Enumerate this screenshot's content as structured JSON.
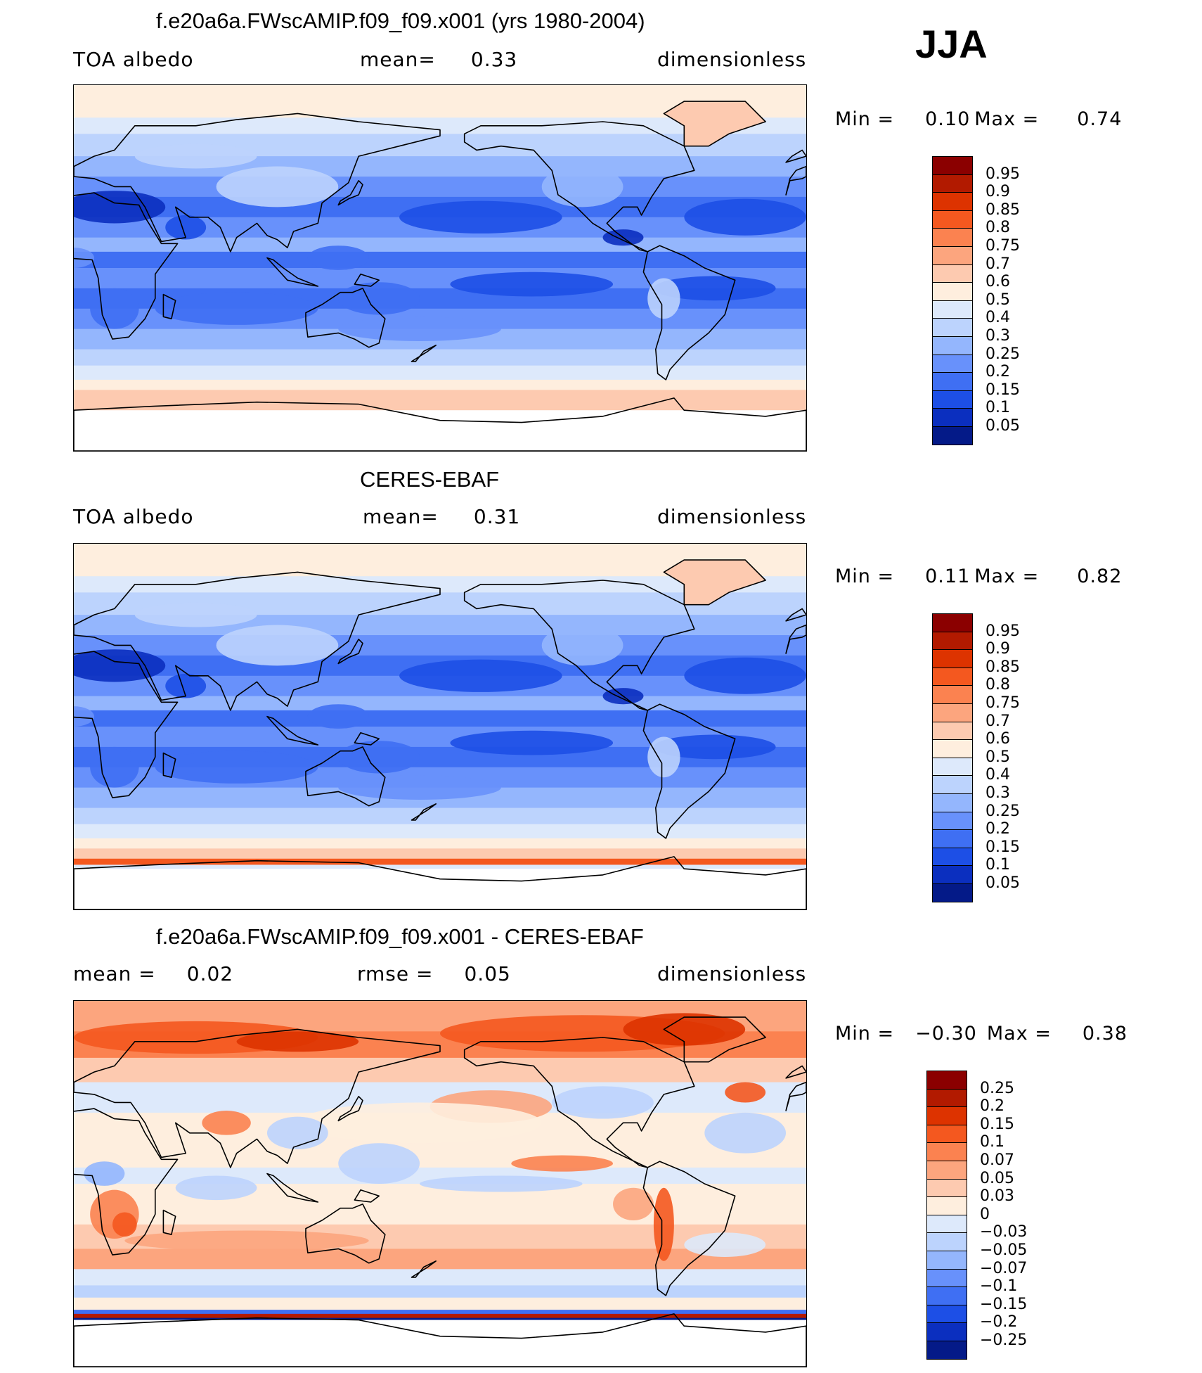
{
  "season": "JJA",
  "panels": [
    {
      "id": "model",
      "title": "f.e20a6a.FWscAMIP.f09_f09.x001 (yrs 1980-2004)",
      "left_label": "TOA albedo",
      "center_label": "mean=",
      "center_value": "0.33",
      "right_label": "dimensionless",
      "min_label": "Min =",
      "min_value": "0.10",
      "max_label": "Max =",
      "max_value": "0.74",
      "colorbar_labels": [
        "0.95",
        "0.9",
        "0.85",
        "0.8",
        "0.75",
        "0.7",
        "0.6",
        "0.5",
        "0.4",
        "0.3",
        "0.25",
        "0.2",
        "0.15",
        "0.1",
        "0.05"
      ]
    },
    {
      "id": "obs",
      "title": "CERES-EBAF",
      "left_label": "TOA albedo",
      "center_label": "mean=",
      "center_value": "0.31",
      "right_label": "dimensionless",
      "min_label": "Min =",
      "min_value": "0.11",
      "max_label": "Max =",
      "max_value": "0.82",
      "colorbar_labels": [
        "0.95",
        "0.9",
        "0.85",
        "0.8",
        "0.75",
        "0.7",
        "0.6",
        "0.5",
        "0.4",
        "0.3",
        "0.25",
        "0.2",
        "0.15",
        "0.1",
        "0.05"
      ]
    },
    {
      "id": "diff",
      "title": "f.e20a6a.FWscAMIP.f09_f09.x001 - CERES-EBAF",
      "left_label": "mean =",
      "left_value": "0.02",
      "center_label": "rmse =",
      "center_value": "0.05",
      "right_label": "dimensionless",
      "min_label": "Min =",
      "min_value": "−0.30",
      "max_label": "Max =",
      "max_value": "0.38",
      "colorbar_labels": [
        "0.25",
        "0.2",
        "0.15",
        "0.1",
        "0.07",
        "0.05",
        "0.03",
        "0",
        "−0.03",
        "−0.05",
        "−0.07",
        "−0.1",
        "−0.15",
        "−0.2",
        "−0.25"
      ]
    }
  ],
  "colors": {
    "scale16": [
      "#8b0000",
      "#b21a00",
      "#dd3300",
      "#f4581f",
      "#fb8250",
      "#fca57e",
      "#fdcab0",
      "#feeede",
      "#dde9fb",
      "#bcd3fd",
      "#94b6fd",
      "#6891fb",
      "#3f6ff3",
      "#1d4fe6",
      "#0b2fbf",
      "#041a88"
    ],
    "coast": "#000000"
  }
}
